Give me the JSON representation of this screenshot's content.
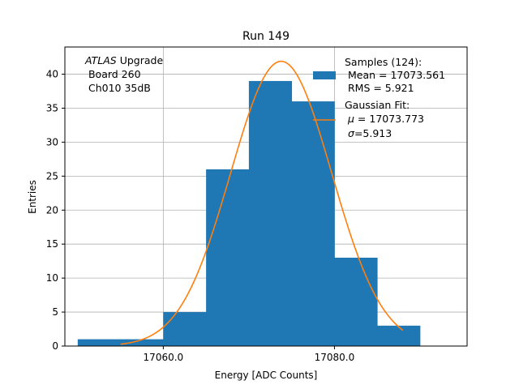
{
  "chart_data": {
    "type": "bar",
    "title": "Run 149",
    "xlabel": "Energy [ADC Counts]",
    "ylabel": "Entries",
    "xlim": [
      17048.5,
      17095.5
    ],
    "ylim": [
      0,
      44
    ],
    "xticks": [
      17060,
      17080
    ],
    "xtick_labels": [
      "17060.0",
      "17080.0"
    ],
    "yticks": [
      0,
      5,
      10,
      15,
      20,
      25,
      30,
      35,
      40
    ],
    "grid": true,
    "colors": {
      "hist": "#1f77b4",
      "fit": "#ff7f0e"
    },
    "annotation": {
      "italic": "ATLAS",
      "line1_rest": " Upgrade",
      "line2": " Board 260",
      "line3": " Ch010 35dB"
    },
    "histogram": {
      "bins": [
        {
          "x0": 17050,
          "x1": 17055,
          "count": 1
        },
        {
          "x0": 17055,
          "x1": 17060,
          "count": 1
        },
        {
          "x0": 17060,
          "x1": 17065,
          "count": 5
        },
        {
          "x0": 17065,
          "x1": 17070,
          "count": 26
        },
        {
          "x0": 17070,
          "x1": 17075,
          "count": 39
        },
        {
          "x0": 17075,
          "x1": 17080,
          "count": 36
        },
        {
          "x0": 17080,
          "x1": 17085,
          "count": 13
        },
        {
          "x0": 17085,
          "x1": 17090,
          "count": 3
        }
      ]
    },
    "fit": {
      "amplitude": 41.9,
      "mu": 17073.773,
      "sigma": 5.913,
      "x_range": [
        17055,
        17088
      ]
    },
    "legend": {
      "position": "top-right",
      "samples": {
        "line1": "Samples (124):",
        "line2": " Mean = 17073.561",
        "line3": " RMS = 5.921"
      },
      "gaussian": {
        "line1": "Gaussian Fit:",
        "line2_sym": "μ",
        "line2_rest": " = 17073.773",
        "line3_sym": "σ",
        "line3_rest": "=5.913"
      }
    }
  }
}
